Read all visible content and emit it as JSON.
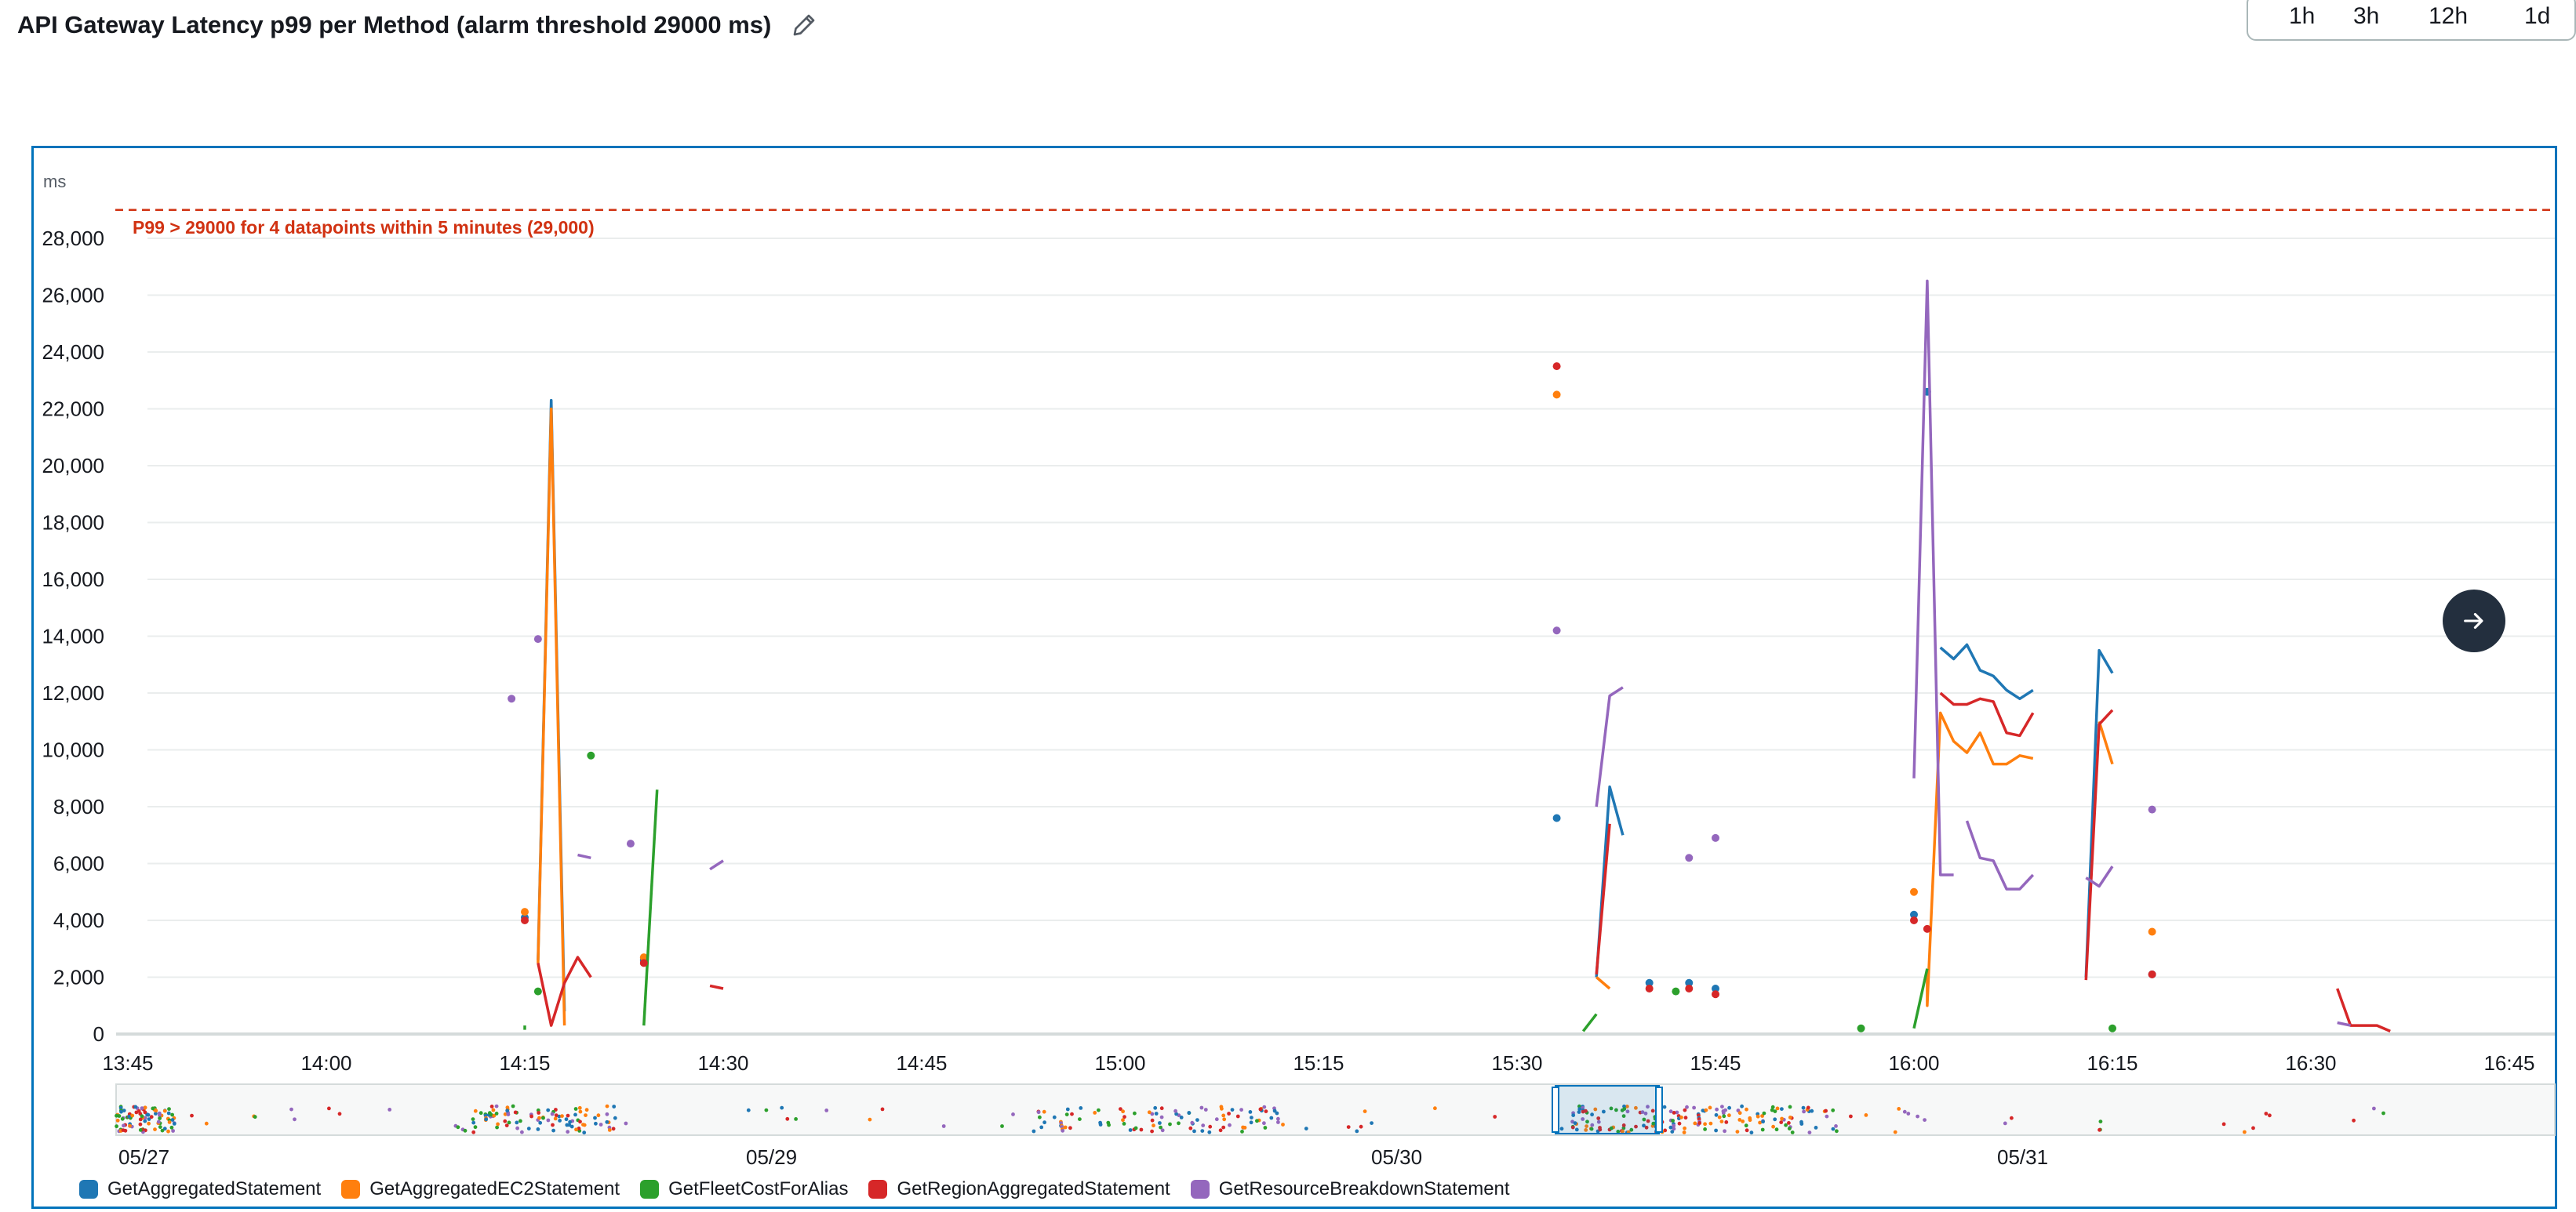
{
  "header": {
    "title": "API Gateway Latency p99 per Method (alarm threshold 29000 ms)",
    "edit_icon": "pencil-icon",
    "time_ranges": [
      "1h",
      "3h",
      "12h",
      "1d"
    ]
  },
  "navigation": {
    "next_icon": "arrow-right-icon"
  },
  "chart_data": {
    "type": "line",
    "ylabel": "ms",
    "ylim": [
      0,
      29000
    ],
    "yticks": [
      0,
      2000,
      4000,
      6000,
      8000,
      10000,
      12000,
      14000,
      16000,
      18000,
      20000,
      22000,
      24000,
      26000,
      28000
    ],
    "ytick_labels": [
      "0",
      "2,000",
      "4,000",
      "6,000",
      "8,000",
      "10,000",
      "12,000",
      "14,000",
      "16,000",
      "18,000",
      "20,000",
      "22,000",
      "24,000",
      "26,000",
      "28,000"
    ],
    "x_ticks": [
      "13:45",
      "14:00",
      "14:15",
      "14:30",
      "14:45",
      "15:00",
      "15:15",
      "15:30",
      "15:45",
      "16:00",
      "16:15",
      "16:30",
      "16:45"
    ],
    "xlim": [
      "13:45",
      "16:47"
    ],
    "grid": true,
    "legend_position": "bottom",
    "threshold": {
      "value": 29000,
      "label": "P99 > 29000 for 4 datapoints within 5 minutes (29,000)",
      "color": "#d13212"
    },
    "series": [
      {
        "name": "GetAggregatedStatement",
        "color": "#1f77b4",
        "segments": [
          [
            [
              "14:16",
              2600
            ],
            [
              "14:17",
              22300
            ],
            [
              "14:18",
              800
            ]
          ],
          [
            [
              "15:36",
              2000
            ],
            [
              "15:37",
              8700
            ],
            [
              "15:38",
              7000
            ]
          ],
          [
            [
              "16:02",
              13600
            ],
            [
              "16:03",
              13200
            ],
            [
              "16:04",
              13700
            ],
            [
              "16:05",
              12800
            ],
            [
              "16:06",
              12600
            ],
            [
              "16:07",
              12100
            ],
            [
              "16:08",
              11800
            ],
            [
              "16:09",
              12100
            ]
          ],
          [
            [
              "16:13",
              2000
            ],
            [
              "16:14",
              13500
            ],
            [
              "16:15",
              12700
            ]
          ]
        ],
        "points": [
          [
            "14:15",
            4100
          ],
          [
            "14:24",
            2600
          ],
          [
            "15:33",
            7600
          ],
          [
            "15:40",
            1800
          ],
          [
            "15:43",
            1800
          ],
          [
            "15:45",
            1600
          ],
          [
            "16:00",
            4200
          ],
          [
            "16:01",
            22600
          ],
          [
            "16:18",
            2100
          ]
        ]
      },
      {
        "name": "GetAggregatedEC2Statement",
        "color": "#ff7f0e",
        "segments": [
          [
            [
              "14:16",
              2500
            ],
            [
              "14:17",
              22000
            ],
            [
              "14:18",
              300
            ]
          ],
          [
            [
              "15:36",
              2000
            ],
            [
              "15:37",
              1600
            ]
          ],
          [
            [
              "16:01",
              2200
            ],
            [
              "16:01",
              1000
            ],
            [
              "16:02",
              11300
            ],
            [
              "16:03",
              10300
            ],
            [
              "16:04",
              9900
            ],
            [
              "16:05",
              10600
            ],
            [
              "16:06",
              9500
            ],
            [
              "16:07",
              9500
            ],
            [
              "16:08",
              9800
            ],
            [
              "16:09",
              9700
            ]
          ],
          [
            [
              "16:14",
              11000
            ],
            [
              "16:15",
              9500
            ]
          ]
        ],
        "points": [
          [
            "14:15",
            4300
          ],
          [
            "14:24",
            2700
          ],
          [
            "15:33",
            22500
          ],
          [
            "16:00",
            5000
          ],
          [
            "16:18",
            3600
          ]
        ]
      },
      {
        "name": "GetFleetCostForAlias",
        "color": "#2ca02c",
        "segments": [
          [
            [
              "14:15",
              300
            ],
            [
              "14:15",
              150
            ]
          ],
          [
            [
              "14:24",
              300
            ],
            [
              "14:25",
              8600
            ]
          ],
          [
            [
              "15:35",
              100
            ],
            [
              "15:36",
              700
            ]
          ],
          [
            [
              "16:00",
              200
            ],
            [
              "16:01",
              2300
            ]
          ]
        ],
        "points": [
          [
            "14:16",
            1500
          ],
          [
            "14:20",
            9800
          ],
          [
            "15:42",
            1500
          ],
          [
            "15:56",
            200
          ],
          [
            "16:15",
            200
          ]
        ]
      },
      {
        "name": "GetRegionAggregatedStatement",
        "color": "#d62728",
        "segments": [
          [
            [
              "14:16",
              2500
            ],
            [
              "14:17",
              300
            ],
            [
              "14:18",
              1800
            ],
            [
              "14:19",
              2700
            ],
            [
              "14:20",
              2000
            ]
          ],
          [
            [
              "14:29",
              1700
            ],
            [
              "14:30",
              1600
            ]
          ],
          [
            [
              "15:36",
              2100
            ],
            [
              "15:37",
              7400
            ]
          ],
          [
            [
              "16:02",
              12000
            ],
            [
              "16:03",
              11600
            ],
            [
              "16:04",
              11600
            ],
            [
              "16:05",
              11800
            ],
            [
              "16:06",
              11700
            ],
            [
              "16:07",
              10600
            ],
            [
              "16:08",
              10500
            ],
            [
              "16:09",
              11300
            ]
          ],
          [
            [
              "16:13",
              1900
            ],
            [
              "16:14",
              10900
            ],
            [
              "16:15",
              11400
            ]
          ],
          [
            [
              "16:32",
              1600
            ],
            [
              "16:33",
              300
            ],
            [
              "16:34",
              300
            ],
            [
              "16:35",
              300
            ],
            [
              "16:36",
              100
            ]
          ]
        ],
        "points": [
          [
            "14:15",
            4000
          ],
          [
            "14:24",
            2500
          ],
          [
            "15:33",
            23500
          ],
          [
            "15:40",
            1600
          ],
          [
            "15:43",
            1600
          ],
          [
            "15:45",
            1400
          ],
          [
            "16:00",
            4000
          ],
          [
            "16:01",
            3700
          ],
          [
            "16:18",
            2100
          ]
        ]
      },
      {
        "name": "GetResourceBreakdownStatement",
        "color": "#9467bd",
        "segments": [
          [
            [
              "14:19",
              6300
            ],
            [
              "14:20",
              6200
            ]
          ],
          [
            [
              "14:29",
              5800
            ],
            [
              "14:30",
              6100
            ]
          ],
          [
            [
              "15:36",
              8000
            ],
            [
              "15:37",
              11900
            ],
            [
              "15:38",
              12200
            ]
          ],
          [
            [
              "16:00",
              9000
            ],
            [
              "16:01",
              26500
            ],
            [
              "16:02",
              5600
            ],
            [
              "16:03",
              5600
            ]
          ],
          [
            [
              "16:04",
              7500
            ],
            [
              "16:05",
              6200
            ],
            [
              "16:06",
              6100
            ],
            [
              "16:07",
              5100
            ],
            [
              "16:08",
              5100
            ],
            [
              "16:09",
              5600
            ]
          ],
          [
            [
              "16:13",
              5500
            ],
            [
              "16:14",
              5200
            ],
            [
              "16:15",
              5900
            ]
          ],
          [
            [
              "16:32",
              400
            ],
            [
              "16:33",
              300
            ]
          ]
        ],
        "points": [
          [
            "14:14",
            11800
          ],
          [
            "14:16",
            13900
          ],
          [
            "14:23",
            6700
          ],
          [
            "15:33",
            14200
          ],
          [
            "15:43",
            6200
          ],
          [
            "15:45",
            6900
          ],
          [
            "16:18",
            7900
          ]
        ]
      }
    ],
    "overview": {
      "date_labels": [
        "05/27",
        "05/29",
        "05/30",
        "05/31"
      ],
      "selection": "05/30"
    }
  }
}
